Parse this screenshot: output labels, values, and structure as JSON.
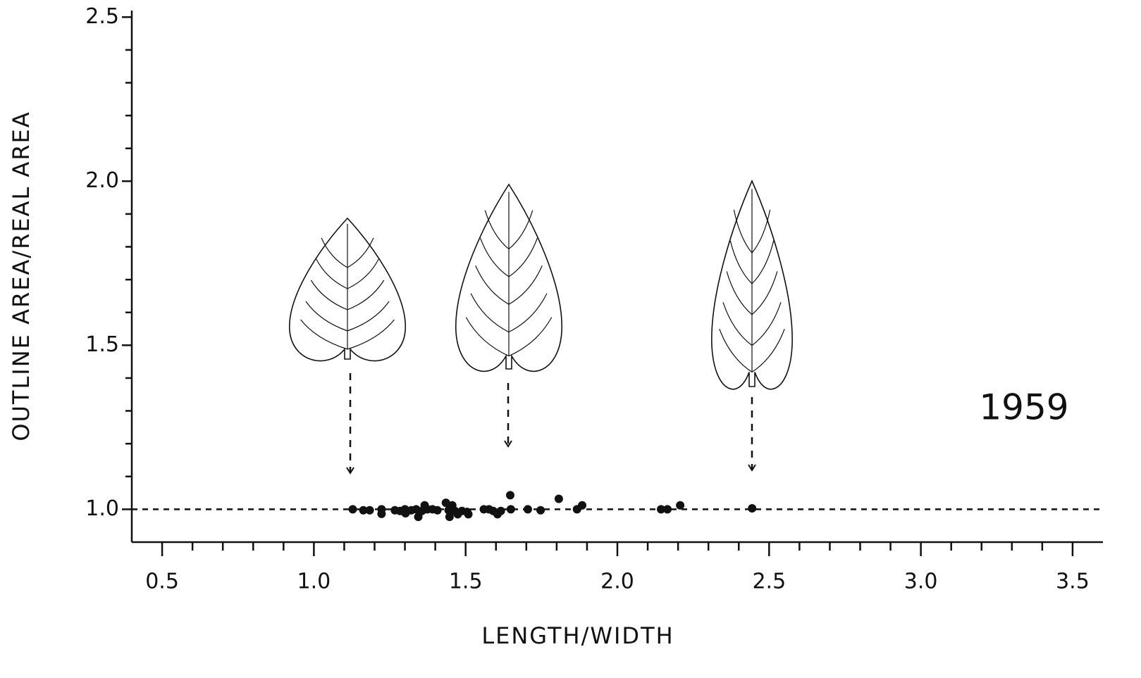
{
  "chart_data": {
    "type": "scatter",
    "xlabel": "LENGTH/WIDTH",
    "ylabel": "OUTLINE AREA/REAL AREA",
    "annotation": "1959",
    "x": [
      1.128,
      1.163,
      1.184,
      1.223,
      1.223,
      1.267,
      1.284,
      1.3,
      1.302,
      1.321,
      1.337,
      1.344,
      1.356,
      1.365,
      1.374,
      1.391,
      1.407,
      1.435,
      1.444,
      1.447,
      1.456,
      1.465,
      1.474,
      1.488,
      1.505,
      1.509,
      1.56,
      1.577,
      1.591,
      1.605,
      1.616,
      1.647,
      1.649,
      1.705,
      1.747,
      1.807,
      1.867,
      1.884,
      2.144,
      2.165,
      2.207,
      2.444
    ],
    "values": [
      1.0,
      0.997,
      0.997,
      1.0,
      0.986,
      0.997,
      0.995,
      1.0,
      0.988,
      0.997,
      1.0,
      0.977,
      0.995,
      1.012,
      1.0,
      1.0,
      0.997,
      1.02,
      0.997,
      0.977,
      1.012,
      0.995,
      0.985,
      0.995,
      0.992,
      0.985,
      1.0,
      1.0,
      0.995,
      0.985,
      0.995,
      1.043,
      1.0,
      1.0,
      0.997,
      1.032,
      1.0,
      1.012,
      1.0,
      1.0,
      1.012,
      1.003
    ],
    "color": "#111111",
    "reference_line": 1.0,
    "xlim": [
      0.4,
      3.6
    ],
    "ylim": [
      0.9,
      2.52
    ],
    "xticks": [
      0.5,
      {
        "value": 1,
        "label": "1.0"
      },
      1.5,
      {
        "value": 2,
        "label": "2.0"
      },
      2.5,
      {
        "value": 3,
        "label": "3.0"
      },
      3.5
    ],
    "yticks": [
      {
        "value": 1,
        "label": "1.0"
      },
      1.5,
      {
        "value": 2,
        "label": "2.0"
      },
      2.5
    ],
    "xminorticks": [
      0.6,
      0.7,
      0.8,
      0.9,
      1.1,
      1.2,
      1.3,
      1.4,
      1.6,
      1.7,
      1.8,
      1.9,
      2.1,
      2.2,
      2.3,
      2.4,
      2.6,
      2.7,
      2.8,
      2.9,
      3.1,
      3.2,
      3.3,
      3.4
    ],
    "yminorticks": [
      1.1,
      1.2,
      1.3,
      1.4,
      1.6,
      1.7,
      1.8,
      1.9,
      2.1,
      2.2,
      2.3,
      2.4
    ]
  }
}
